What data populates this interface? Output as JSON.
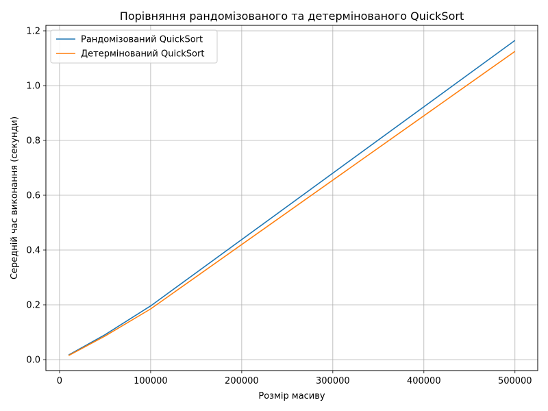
{
  "chart_data": {
    "type": "line",
    "title": "Порівняння рандомізованого та детермінованого QuickSort",
    "xlabel": "Розмір масиву",
    "ylabel": "Середній час виконання (секунди)",
    "xlim": [
      -15000,
      525000
    ],
    "ylim": [
      -0.04,
      1.22
    ],
    "xticks": [
      0,
      100000,
      200000,
      300000,
      400000,
      500000
    ],
    "xtick_labels": [
      "0",
      "100000",
      "200000",
      "300000",
      "400000",
      "500000"
    ],
    "yticks": [
      0.0,
      0.2,
      0.4,
      0.6,
      0.8,
      1.0,
      1.2
    ],
    "ytick_labels": [
      "0.0",
      "0.2",
      "0.4",
      "0.6",
      "0.8",
      "1.0",
      "1.2"
    ],
    "grid": true,
    "legend_position": "top-left",
    "x": [
      10000,
      50000,
      100000,
      500000
    ],
    "series": [
      {
        "name": "Рандомізований QuickSort",
        "color": "#1f77b4",
        "values": [
          0.017,
          0.091,
          0.196,
          1.165
        ]
      },
      {
        "name": "Детермінований QuickSort",
        "color": "#ff7f0e",
        "values": [
          0.015,
          0.086,
          0.185,
          1.125
        ]
      }
    ]
  }
}
